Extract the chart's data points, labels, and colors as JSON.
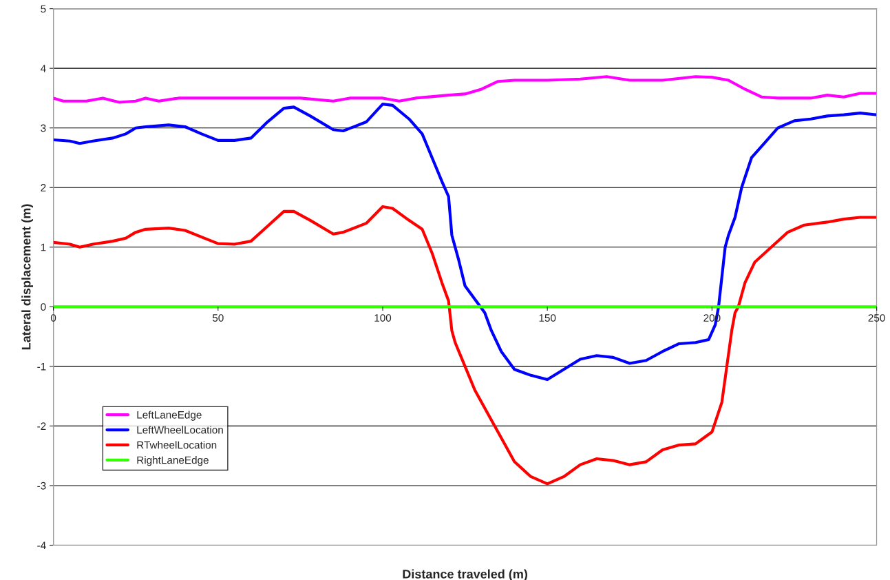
{
  "chart_data": {
    "type": "line",
    "xlabel": "Distance traveled (m)",
    "ylabel": "Lateral displacement (m)",
    "xlim": [
      0,
      250
    ],
    "xticks": [
      0,
      50,
      100,
      150,
      200,
      250
    ],
    "ylim": [
      -4,
      5
    ],
    "yticks": [
      -4,
      -3,
      -2,
      -1,
      0,
      1,
      2,
      3,
      4,
      5
    ],
    "grid": "y",
    "legend": "lower left",
    "marker": "none",
    "line_style": "solid",
    "series": [
      {
        "name": "LeftLaneEdge",
        "color": "#ff00ff",
        "x": [
          0,
          3,
          10,
          15,
          20,
          25,
          28,
          32,
          38,
          45,
          55,
          65,
          75,
          85,
          90,
          100,
          105,
          110,
          120,
          125,
          130,
          135,
          140,
          150,
          160,
          168,
          175,
          185,
          195,
          200,
          205,
          210,
          215,
          220,
          230,
          235,
          240,
          245,
          250
        ],
        "values": [
          3.5,
          3.45,
          3.45,
          3.5,
          3.43,
          3.45,
          3.5,
          3.45,
          3.5,
          3.5,
          3.5,
          3.5,
          3.5,
          3.45,
          3.5,
          3.5,
          3.45,
          3.5,
          3.55,
          3.57,
          3.65,
          3.78,
          3.8,
          3.8,
          3.82,
          3.86,
          3.8,
          3.8,
          3.86,
          3.85,
          3.8,
          3.65,
          3.52,
          3.5,
          3.5,
          3.55,
          3.52,
          3.58,
          3.58
        ]
      },
      {
        "name": "LeftWheelLocation",
        "color": "#0000ff",
        "x": [
          0,
          5,
          8,
          12,
          18,
          22,
          25,
          28,
          35,
          40,
          45,
          50,
          55,
          60,
          65,
          70,
          73,
          78,
          85,
          88,
          95,
          100,
          103,
          108,
          112,
          115,
          118,
          120,
          121,
          123,
          125,
          127,
          129,
          131,
          133,
          136,
          140,
          145,
          150,
          155,
          160,
          165,
          170,
          175,
          180,
          185,
          190,
          195,
          199,
          201,
          202,
          203,
          204,
          205,
          207,
          209,
          212,
          216,
          220,
          225,
          230,
          235,
          240,
          245,
          250
        ],
        "values": [
          2.8,
          2.78,
          2.74,
          2.78,
          2.83,
          2.9,
          3.0,
          3.02,
          3.05,
          3.02,
          2.9,
          2.79,
          2.79,
          2.83,
          3.1,
          3.33,
          3.35,
          3.2,
          2.97,
          2.95,
          3.1,
          3.4,
          3.38,
          3.15,
          2.9,
          2.5,
          2.1,
          1.85,
          1.2,
          0.8,
          0.35,
          0.2,
          0.05,
          -0.1,
          -0.4,
          -0.75,
          -1.05,
          -1.15,
          -1.22,
          -1.05,
          -0.88,
          -0.82,
          -0.85,
          -0.95,
          -0.9,
          -0.75,
          -0.62,
          -0.6,
          -0.55,
          -0.3,
          0.0,
          0.5,
          1.0,
          1.2,
          1.5,
          2.0,
          2.5,
          2.75,
          3.0,
          3.12,
          3.15,
          3.2,
          3.22,
          3.25,
          3.22
        ]
      },
      {
        "name": "RTwheelLocation",
        "color": "#ff0000",
        "x": [
          0,
          5,
          8,
          12,
          18,
          22,
          25,
          28,
          35,
          40,
          45,
          50,
          55,
          60,
          65,
          70,
          73,
          78,
          85,
          88,
          95,
          100,
          103,
          108,
          112,
          115,
          118,
          120,
          121,
          122,
          125,
          128,
          131,
          135,
          140,
          145,
          150,
          155,
          160,
          165,
          170,
          175,
          180,
          185,
          190,
          195,
          200,
          203,
          205,
          206,
          207,
          208,
          210,
          213,
          218,
          223,
          228,
          235,
          240,
          245,
          250
        ],
        "values": [
          1.08,
          1.05,
          1.0,
          1.05,
          1.1,
          1.15,
          1.25,
          1.3,
          1.32,
          1.28,
          1.17,
          1.06,
          1.05,
          1.1,
          1.35,
          1.6,
          1.6,
          1.45,
          1.22,
          1.25,
          1.4,
          1.68,
          1.65,
          1.45,
          1.3,
          0.9,
          0.4,
          0.1,
          -0.4,
          -0.6,
          -1.0,
          -1.4,
          -1.7,
          -2.1,
          -2.6,
          -2.85,
          -2.97,
          -2.85,
          -2.65,
          -2.55,
          -2.58,
          -2.65,
          -2.6,
          -2.4,
          -2.32,
          -2.3,
          -2.1,
          -1.6,
          -0.8,
          -0.4,
          -0.1,
          0.0,
          0.4,
          0.75,
          1.0,
          1.25,
          1.37,
          1.42,
          1.47,
          1.5,
          1.5
        ]
      },
      {
        "name": "RightLaneEdge",
        "color": "#33ff00",
        "x": [
          0,
          250
        ],
        "values": [
          0,
          0
        ]
      }
    ]
  }
}
